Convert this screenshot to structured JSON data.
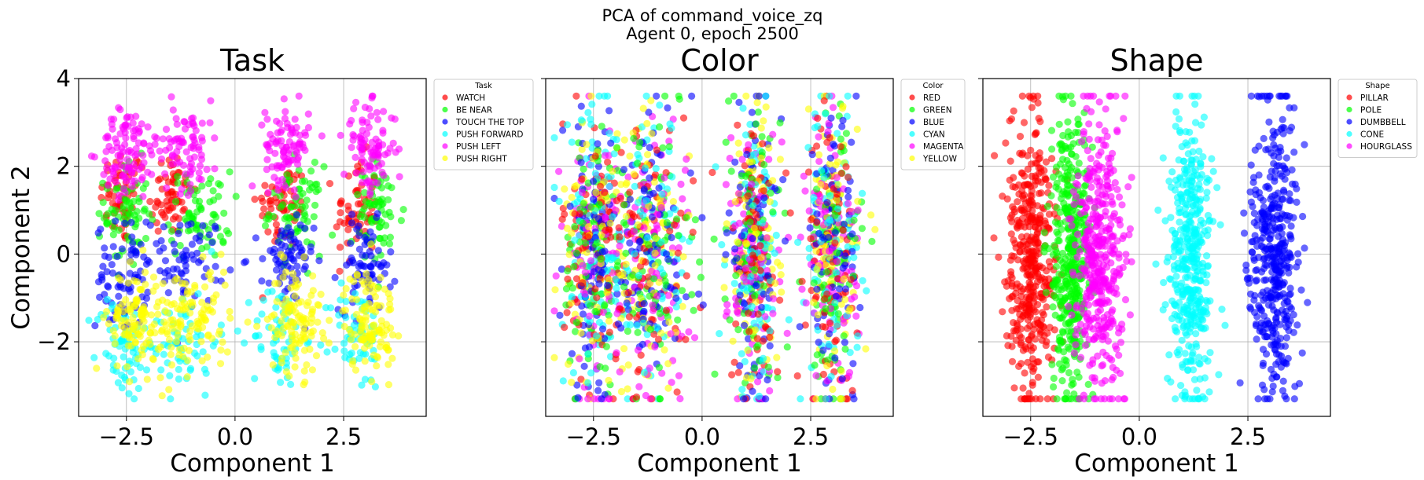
{
  "figure": {
    "title_line1": "PCA of command_voice_zq",
    "title_line2": "Agent 0, epoch 2500"
  },
  "chart_data": [
    {
      "type": "scatter",
      "title": "Task",
      "xlabel": "Component 1",
      "ylabel": "Component 2",
      "xlim": [
        -3.6,
        4.4
      ],
      "ylim": [
        -3.7,
        4.0
      ],
      "xticks": [
        -2.5,
        0.0,
        2.5
      ],
      "xtick_labels": [
        "−2.5",
        "0.0",
        "2.5"
      ],
      "yticks": [
        -2,
        0,
        2,
        4
      ],
      "ytick_labels": [
        "−2",
        "0",
        "2",
        "4"
      ],
      "grid": true,
      "legend_title": "Task",
      "legend_position": "outside-upper-right",
      "series": [
        {
          "name": "WATCH",
          "color": "#ff0000",
          "clusters": [
            [
              -2.6,
              1.3,
              0.25,
              0.55
            ],
            [
              -1.5,
              1.4,
              0.25,
              0.5
            ],
            [
              1.1,
              1.1,
              0.3,
              0.5
            ],
            [
              2.8,
              1.0,
              0.25,
              0.6
            ]
          ],
          "n": 60
        },
        {
          "name": "BE NEAR",
          "color": "#00ff00",
          "clusters": [
            [
              -2.5,
              0.9,
              0.25,
              0.6
            ],
            [
              -0.8,
              0.9,
              0.35,
              0.5
            ],
            [
              1.4,
              1.0,
              0.3,
              0.5
            ],
            [
              3.3,
              0.9,
              0.3,
              0.6
            ]
          ],
          "n": 70
        },
        {
          "name": "TOUCH THE TOP",
          "color": "#0000ff",
          "clusters": [
            [
              -2.6,
              -0.5,
              0.3,
              0.6
            ],
            [
              -1.1,
              -0.1,
              0.45,
              0.5
            ],
            [
              1.2,
              -0.2,
              0.3,
              0.5
            ],
            [
              3.0,
              -0.3,
              0.3,
              0.5
            ]
          ],
          "n": 70
        },
        {
          "name": "PUSH FORWARD",
          "color": "#00ffff",
          "clusters": [
            [
              -2.6,
              -2.1,
              0.3,
              0.6
            ],
            [
              -1.2,
              -2.0,
              0.4,
              0.6
            ],
            [
              1.0,
              -1.9,
              0.3,
              0.6
            ],
            [
              2.8,
              -1.9,
              0.3,
              0.6
            ]
          ],
          "n": 60
        },
        {
          "name": "PUSH LEFT",
          "color": "#ff00ff",
          "clusters": [
            [
              -2.5,
              2.3,
              0.3,
              0.5
            ],
            [
              -1.2,
              2.5,
              0.45,
              0.5
            ],
            [
              1.2,
              2.5,
              0.25,
              0.45
            ],
            [
              3.1,
              2.4,
              0.3,
              0.5
            ]
          ],
          "n": 90
        },
        {
          "name": "PUSH RIGHT",
          "color": "#ffff00",
          "clusters": [
            [
              -2.3,
              -1.5,
              0.3,
              0.6
            ],
            [
              -1.0,
              -1.5,
              0.45,
              0.6
            ],
            [
              1.4,
              -1.5,
              0.3,
              0.6
            ],
            [
              3.1,
              -1.5,
              0.3,
              0.6
            ]
          ],
          "n": 110
        }
      ]
    },
    {
      "type": "scatter",
      "title": "Color",
      "xlabel": "Component 1",
      "ylabel": "",
      "xlim": [
        -3.6,
        4.4
      ],
      "ylim": [
        -3.7,
        4.0
      ],
      "xticks": [
        -2.5,
        0.0,
        2.5
      ],
      "xtick_labels": [
        "−2.5",
        "0.0",
        "2.5"
      ],
      "yticks": [
        -2,
        0,
        2,
        4
      ],
      "ytick_labels": [
        "",
        "",
        "",
        ""
      ],
      "grid": true,
      "legend_title": "Color",
      "legend_position": "outside-upper-right",
      "series": [
        {
          "name": "RED",
          "color": "#ff0000",
          "clusters": [
            [
              -2.5,
              0.0,
              0.35,
              1.6
            ],
            [
              -1.2,
              0.0,
              0.5,
              1.6
            ],
            [
              1.2,
              0.0,
              0.3,
              1.6
            ],
            [
              3.0,
              0.0,
              0.3,
              1.6
            ]
          ],
          "n": 90
        },
        {
          "name": "GREEN",
          "color": "#00ff00",
          "clusters": [
            [
              -2.5,
              0.0,
              0.35,
              1.6
            ],
            [
              -1.2,
              0.0,
              0.5,
              1.6
            ],
            [
              1.2,
              0.0,
              0.3,
              1.6
            ],
            [
              3.0,
              0.0,
              0.3,
              1.6
            ]
          ],
          "n": 90
        },
        {
          "name": "BLUE",
          "color": "#0000ff",
          "clusters": [
            [
              -2.5,
              0.0,
              0.35,
              1.6
            ],
            [
              -1.2,
              0.0,
              0.5,
              1.6
            ],
            [
              1.2,
              0.0,
              0.3,
              1.6
            ],
            [
              3.0,
              0.0,
              0.3,
              1.6
            ]
          ],
          "n": 90
        },
        {
          "name": "CYAN",
          "color": "#00ffff",
          "clusters": [
            [
              -2.5,
              0.0,
              0.35,
              1.6
            ],
            [
              -1.2,
              0.0,
              0.5,
              1.6
            ],
            [
              1.2,
              0.0,
              0.3,
              1.6
            ],
            [
              3.0,
              0.0,
              0.3,
              1.6
            ]
          ],
          "n": 90
        },
        {
          "name": "MAGENTA",
          "color": "#ff00ff",
          "clusters": [
            [
              -2.5,
              0.0,
              0.35,
              1.6
            ],
            [
              -1.2,
              0.0,
              0.5,
              1.6
            ],
            [
              1.2,
              0.0,
              0.3,
              1.6
            ],
            [
              3.0,
              0.0,
              0.3,
              1.6
            ]
          ],
          "n": 90
        },
        {
          "name": "YELLOW",
          "color": "#ffff00",
          "clusters": [
            [
              -2.5,
              0.0,
              0.35,
              1.6
            ],
            [
              -1.2,
              0.0,
              0.5,
              1.6
            ],
            [
              1.2,
              0.0,
              0.3,
              1.6
            ],
            [
              3.0,
              0.0,
              0.3,
              1.6
            ]
          ],
          "n": 90
        }
      ]
    },
    {
      "type": "scatter",
      "title": "Shape",
      "xlabel": "Component 1",
      "ylabel": "",
      "xlim": [
        -3.6,
        4.4
      ],
      "ylim": [
        -3.7,
        4.0
      ],
      "xticks": [
        -2.5,
        0.0,
        2.5
      ],
      "xtick_labels": [
        "−2.5",
        "0.0",
        "2.5"
      ],
      "yticks": [
        -2,
        0,
        2,
        4
      ],
      "ytick_labels": [
        "",
        "",
        "",
        ""
      ],
      "grid": true,
      "legend_title": "Shape",
      "legend_position": "outside-upper-right",
      "series": [
        {
          "name": "PILLAR",
          "color": "#ff0000",
          "clusters": [
            [
              -2.5,
              0.0,
              0.3,
              1.6
            ]
          ],
          "n": 420
        },
        {
          "name": "POLE",
          "color": "#00ff00",
          "clusters": [
            [
              -1.6,
              0.0,
              0.22,
              1.6
            ]
          ],
          "n": 420
        },
        {
          "name": "DUMBBELL",
          "color": "#0000ff",
          "clusters": [
            [
              3.1,
              0.0,
              0.28,
              1.6
            ]
          ],
          "n": 420
        },
        {
          "name": "CONE",
          "color": "#00ffff",
          "clusters": [
            [
              1.2,
              0.0,
              0.25,
              1.6
            ]
          ],
          "n": 420
        },
        {
          "name": "HOURGLASS",
          "color": "#ff00ff",
          "clusters": [
            [
              -0.9,
              0.0,
              0.28,
              1.6
            ]
          ],
          "n": 420
        }
      ]
    }
  ]
}
